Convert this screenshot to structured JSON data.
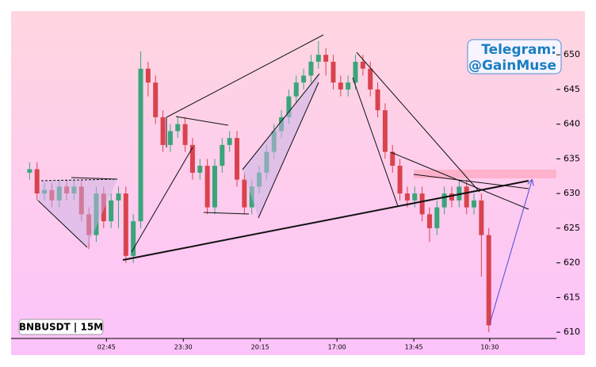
{
  "chart_data": {
    "type": "candlestick",
    "watermark": "Telegram:\n@GainMuse",
    "symbol_label": "BNBUSDT | 15M",
    "up_color": "#3aa57a",
    "down_color": "#d9434e",
    "xlim": [
      0,
      589
    ],
    "ylim": [
      609.1,
      656.3
    ],
    "xticks": [
      {
        "value": 103,
        "label": "02:45"
      },
      {
        "value": 186,
        "label": "23:30"
      },
      {
        "value": 269,
        "label": "20:15"
      },
      {
        "value": 352,
        "label": "17:00"
      },
      {
        "value": 435,
        "label": "13:45"
      },
      {
        "value": 517,
        "label": "10:30"
      }
    ],
    "yticks": [
      610,
      615,
      620,
      625,
      630,
      635,
      640,
      645,
      650
    ],
    "x": [
      20,
      28,
      36,
      44,
      52,
      60,
      68,
      76,
      84,
      92,
      100,
      108,
      116,
      124,
      132,
      140,
      148,
      156,
      164,
      172,
      180,
      188,
      196,
      204,
      212,
      220,
      228,
      236,
      244,
      252,
      260,
      268,
      276,
      284,
      292,
      300,
      308,
      316,
      324,
      332,
      340,
      348,
      356,
      364,
      372,
      380,
      388,
      396,
      404,
      412,
      420,
      428,
      436,
      444,
      452,
      460,
      468,
      476,
      484,
      492,
      500,
      508,
      516
    ],
    "open": [
      633,
      633.5,
      630,
      630.5,
      629,
      631,
      630,
      631,
      627,
      624,
      630,
      626,
      629,
      630,
      621,
      626,
      648,
      646,
      641,
      637,
      639,
      640,
      637,
      633,
      634,
      628,
      634,
      637,
      638,
      632,
      628,
      631,
      633,
      636,
      639,
      641,
      644,
      646,
      647,
      649,
      650,
      649,
      646,
      645,
      646,
      649,
      648,
      645,
      642,
      636,
      634,
      630,
      629,
      630,
      627,
      625,
      628,
      630,
      629,
      631,
      628,
      629,
      624
    ],
    "high": [
      634.5,
      634.5,
      631.5,
      631.5,
      632,
      632,
      632,
      632,
      628,
      631,
      631,
      630,
      631,
      631,
      627,
      650.5,
      649,
      647,
      642,
      640,
      641,
      641,
      638,
      635,
      635,
      635,
      638,
      639,
      639,
      633,
      632,
      634,
      637,
      640,
      642,
      645,
      647,
      648,
      650,
      652,
      651,
      650,
      647,
      647,
      650,
      650,
      649,
      646,
      643,
      637,
      635,
      631,
      631,
      631,
      628,
      629,
      631,
      631,
      632,
      632,
      630,
      630,
      625
    ],
    "low": [
      632,
      629,
      629,
      628,
      628,
      629,
      629,
      626,
      622,
      623,
      625,
      625,
      625,
      620,
      620,
      625,
      644,
      640,
      636,
      636,
      638,
      636,
      632,
      632,
      627,
      627,
      633,
      636,
      631,
      627,
      627,
      630,
      632,
      635,
      638,
      640,
      643,
      645,
      646,
      648,
      647,
      645,
      644,
      644,
      645,
      647,
      644,
      641,
      635,
      633,
      629,
      628,
      628,
      626,
      623,
      624,
      627,
      628,
      628,
      627,
      627,
      618,
      610
    ],
    "close": [
      633.5,
      630,
      630.5,
      629,
      631,
      630,
      631,
      627,
      624,
      630,
      626,
      629,
      630,
      621,
      626,
      648,
      646,
      641,
      637,
      639,
      640,
      637,
      633,
      634,
      628,
      634,
      637,
      638,
      632,
      628,
      631,
      633,
      636,
      639,
      641,
      644,
      646,
      647,
      649,
      650,
      649,
      646,
      645,
      646,
      649,
      648,
      645,
      642,
      636,
      634,
      630,
      629,
      630,
      627,
      625,
      628,
      630,
      629,
      631,
      628,
      629,
      624,
      611
    ]
  }
}
